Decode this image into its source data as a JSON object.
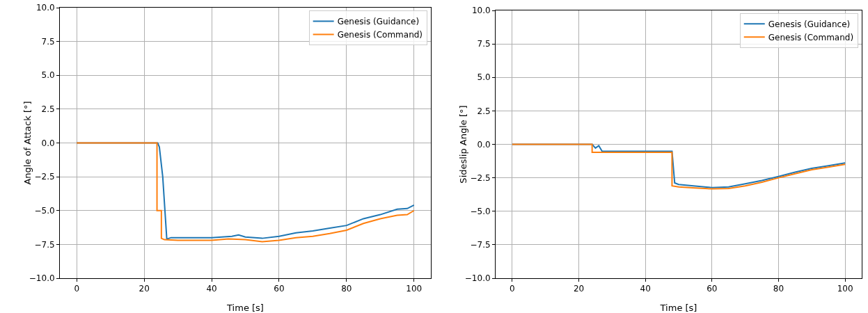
{
  "chart_data": [
    {
      "type": "line",
      "xlabel": "Time [s]",
      "ylabel": "Angle of Attack [°]",
      "xlim": [
        -5,
        105
      ],
      "ylim": [
        -10,
        10
      ],
      "xticks": [
        0,
        20,
        40,
        60,
        80,
        100
      ],
      "yticks": [
        {
          "value": -10,
          "label": "−10.0"
        },
        {
          "value": -7.5,
          "label": "−7.5"
        },
        {
          "value": -5,
          "label": "−5.0"
        },
        {
          "value": -2.5,
          "label": "−2.5"
        },
        {
          "value": 0,
          "label": "0.0"
        },
        {
          "value": 2.5,
          "label": "2.5"
        },
        {
          "value": 5,
          "label": "5.0"
        },
        {
          "value": 7.5,
          "label": "7.5"
        },
        {
          "value": 10,
          "label": "10.0"
        }
      ],
      "grid": true,
      "legend": "top right",
      "marker": "none",
      "line_style": "solid",
      "series": [
        {
          "name": "Genesis (Guidance)",
          "color": "#1f77b4",
          "x": [
            0,
            24,
            24.5,
            25.5,
            26.7,
            28,
            40,
            46,
            48,
            50,
            55,
            60,
            65,
            70,
            75,
            80,
            85,
            90,
            95,
            98,
            100
          ],
          "values": [
            0,
            0,
            -0.3,
            -2.5,
            -7.1,
            -7.0,
            -7.0,
            -6.9,
            -6.8,
            -6.95,
            -7.05,
            -6.9,
            -6.65,
            -6.5,
            -6.3,
            -6.1,
            -5.6,
            -5.3,
            -4.9,
            -4.85,
            -4.6
          ]
        },
        {
          "name": "Genesis (Command)",
          "color": "#ff7f0e",
          "x": [
            0,
            23.8,
            23.8,
            25.1,
            25.1,
            26,
            30,
            40,
            45,
            50,
            55,
            60,
            65,
            70,
            75,
            80,
            85,
            90,
            95,
            98,
            100
          ],
          "values": [
            0,
            0,
            -5,
            -5,
            -7.05,
            -7.15,
            -7.2,
            -7.2,
            -7.1,
            -7.15,
            -7.3,
            -7.2,
            -7.0,
            -6.9,
            -6.7,
            -6.45,
            -5.95,
            -5.6,
            -5.35,
            -5.3,
            -5.0
          ]
        }
      ]
    },
    {
      "type": "line",
      "xlabel": "Time [s]",
      "ylabel": "Sideslip Angle [°]",
      "xlim": [
        -5,
        105
      ],
      "ylim": [
        -10,
        10
      ],
      "xticks": [
        0,
        20,
        40,
        60,
        80,
        100
      ],
      "yticks": [
        {
          "value": -10,
          "label": "−10.0"
        },
        {
          "value": -7.5,
          "label": "−7.5"
        },
        {
          "value": -5,
          "label": "−5.0"
        },
        {
          "value": -2.5,
          "label": "−2.5"
        },
        {
          "value": 0,
          "label": "0.0"
        },
        {
          "value": 2.5,
          "label": "2.5"
        },
        {
          "value": 5,
          "label": "5.0"
        },
        {
          "value": 7.5,
          "label": "7.5"
        },
        {
          "value": 10,
          "label": "10.0"
        }
      ],
      "grid": true,
      "legend": "top right",
      "marker": "none",
      "line_style": "solid",
      "series": [
        {
          "name": "Genesis (Guidance)",
          "color": "#1f77b4",
          "x": [
            0,
            24,
            25,
            26,
            27,
            48,
            48.8,
            50,
            55,
            60,
            65,
            70,
            75,
            80,
            85,
            90,
            95,
            100
          ],
          "values": [
            0,
            0,
            -0.28,
            -0.1,
            -0.52,
            -0.52,
            -2.88,
            -3.0,
            -3.12,
            -3.23,
            -3.18,
            -2.95,
            -2.7,
            -2.4,
            -2.08,
            -1.79,
            -1.6,
            -1.39
          ]
        },
        {
          "name": "Genesis (Command)",
          "color": "#ff7f0e",
          "x": [
            0,
            24,
            24,
            48,
            48,
            50,
            55,
            60,
            65,
            70,
            75,
            80,
            85,
            90,
            95,
            100
          ],
          "values": [
            0,
            0,
            -0.6,
            -0.6,
            -3.1,
            -3.18,
            -3.26,
            -3.33,
            -3.3,
            -3.1,
            -2.83,
            -2.5,
            -2.19,
            -1.9,
            -1.7,
            -1.49
          ]
        }
      ]
    }
  ]
}
